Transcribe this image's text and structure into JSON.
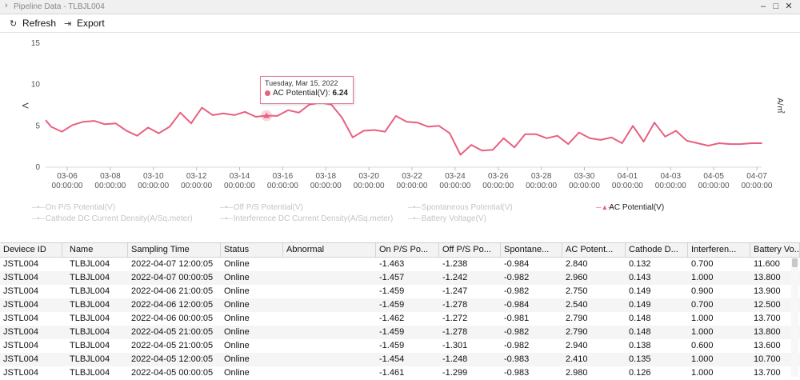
{
  "window": {
    "title": "Pipeline Data - TLBJL004",
    "title_icon": "chevron-right-icon",
    "minimize": "–",
    "maximize": "□",
    "close": "✕"
  },
  "toolbar": {
    "refresh_label": "Refresh",
    "refresh_icon": "refresh-icon",
    "export_label": "Export",
    "export_icon": "export-icon"
  },
  "chart_data": {
    "type": "line",
    "title": "",
    "ylabel": "V",
    "y2label": "A/㎡",
    "ylim": [
      0,
      15
    ],
    "yticks": [
      "0",
      "5",
      "10",
      "15"
    ],
    "xlim": [
      "2022-03-05",
      "2022-04-07"
    ],
    "xticks": [
      {
        "date": "2022-03-06",
        "line1": "03-06",
        "line2": "00:00:00"
      },
      {
        "date": "2022-03-08",
        "line1": "03-08",
        "line2": "00:00:00"
      },
      {
        "date": "2022-03-10",
        "line1": "03-10",
        "line2": "00:00:00"
      },
      {
        "date": "2022-03-12",
        "line1": "03-12",
        "line2": "00:00:00"
      },
      {
        "date": "2022-03-14",
        "line1": "03-14",
        "line2": "00:00:00"
      },
      {
        "date": "2022-03-16",
        "line1": "03-16",
        "line2": "00:00:00"
      },
      {
        "date": "2022-03-18",
        "line1": "03-18",
        "line2": "00:00:00"
      },
      {
        "date": "2022-03-20",
        "line1": "03-20",
        "line2": "00:00:00"
      },
      {
        "date": "2022-03-22",
        "line1": "03-22",
        "line2": "00:00:00"
      },
      {
        "date": "2022-03-24",
        "line1": "03-24",
        "line2": "00:00:00"
      },
      {
        "date": "2022-03-26",
        "line1": "03-26",
        "line2": "00:00:00"
      },
      {
        "date": "2022-03-28",
        "line1": "03-28",
        "line2": "00:00:00"
      },
      {
        "date": "2022-03-30",
        "line1": "03-30",
        "line2": "00:00:00"
      },
      {
        "date": "2022-04-01",
        "line1": "04-01",
        "line2": "00:00:00"
      },
      {
        "date": "2022-04-03",
        "line1": "04-03",
        "line2": "00:00:00"
      },
      {
        "date": "2022-04-05",
        "line1": "04-05",
        "line2": "00:00:00"
      },
      {
        "date": "2022-04-07",
        "line1": "04-07",
        "line2": "00:00:00"
      }
    ],
    "grid": false,
    "legend_position": "bottom",
    "line_color": "#e8607f",
    "series": [
      {
        "name": "AC Potential(V)",
        "x": [
          "2022-03-05 00:00",
          "2022-03-05 06:00",
          "2022-03-05 18:00",
          "2022-03-06 06:00",
          "2022-03-06 18:00",
          "2022-03-07 06:00",
          "2022-03-07 18:00",
          "2022-03-08 06:00",
          "2022-03-08 18:00",
          "2022-03-09 06:00",
          "2022-03-09 18:00",
          "2022-03-10 06:00",
          "2022-03-10 18:00",
          "2022-03-11 06:00",
          "2022-03-11 18:00",
          "2022-03-12 06:00",
          "2022-03-12 18:00",
          "2022-03-13 06:00",
          "2022-03-13 18:00",
          "2022-03-14 06:00",
          "2022-03-14 18:00",
          "2022-03-15 06:00",
          "2022-03-15 18:00",
          "2022-03-16 06:00",
          "2022-03-16 18:00",
          "2022-03-17 06:00",
          "2022-03-17 18:00",
          "2022-03-18 06:00",
          "2022-03-18 18:00",
          "2022-03-19 06:00",
          "2022-03-19 18:00",
          "2022-03-20 06:00",
          "2022-03-20 18:00",
          "2022-03-21 06:00",
          "2022-03-21 18:00",
          "2022-03-22 06:00",
          "2022-03-22 18:00",
          "2022-03-23 06:00",
          "2022-03-23 18:00",
          "2022-03-24 06:00",
          "2022-03-24 18:00",
          "2022-03-25 06:00",
          "2022-03-25 18:00",
          "2022-03-26 06:00",
          "2022-03-26 18:00",
          "2022-03-27 06:00",
          "2022-03-27 18:00",
          "2022-03-28 06:00",
          "2022-03-28 18:00",
          "2022-03-29 06:00",
          "2022-03-29 18:00",
          "2022-03-30 06:00",
          "2022-03-30 18:00",
          "2022-03-31 06:00",
          "2022-03-31 18:00",
          "2022-04-01 06:00",
          "2022-04-01 18:00",
          "2022-04-02 06:00",
          "2022-04-02 18:00",
          "2022-04-03 06:00",
          "2022-04-03 18:00",
          "2022-04-04 06:00",
          "2022-04-04 18:00",
          "2022-04-05 06:00",
          "2022-04-05 18:00",
          "2022-04-06 06:00",
          "2022-04-06 18:00",
          "2022-04-07 06:00"
        ],
        "values": [
          5.7,
          4.9,
          4.3,
          5.1,
          5.5,
          5.6,
          5.2,
          5.3,
          4.4,
          3.8,
          4.8,
          4.1,
          4.9,
          6.6,
          5.3,
          7.2,
          6.3,
          6.5,
          6.3,
          6.7,
          6.1,
          6.24,
          6.2,
          6.9,
          6.6,
          7.6,
          7.8,
          7.6,
          6.0,
          3.6,
          4.4,
          4.5,
          4.3,
          6.2,
          5.5,
          5.4,
          4.9,
          5.0,
          4.1,
          1.5,
          2.7,
          2.0,
          2.1,
          3.5,
          2.4,
          4.0,
          4.0,
          3.5,
          3.8,
          2.8,
          4.2,
          3.5,
          3.3,
          3.6,
          2.9,
          5.0,
          3.1,
          5.4,
          3.7,
          4.4,
          3.2,
          2.9,
          2.6,
          2.9,
          2.8,
          2.8,
          2.9,
          2.9
        ]
      }
    ],
    "tooltip": {
      "date": "Tuesday, Mar 15, 2022",
      "series": "AC Potential(V)",
      "value": "6.24",
      "anchor_x": "2022-03-15 06:00",
      "anchor_y": 6.24
    }
  },
  "legend": [
    {
      "label": "On P/S Potential(V)",
      "active": false
    },
    {
      "label": "Off P/S Potential(V)",
      "active": false
    },
    {
      "label": "Spontaneous Potential(V)",
      "active": false
    },
    {
      "label": "AC Potential(V)",
      "active": true
    },
    {
      "label": "Cathode DC Current Density(A/Sq.meter)",
      "active": false
    },
    {
      "label": "Interference DC Current Density(A/Sq.meter)",
      "active": false
    },
    {
      "label": "Battery Voltage(V)",
      "active": false
    }
  ],
  "table": {
    "columns": [
      "Deviece ID",
      "Name",
      "Sampling Time",
      "Status",
      "Abnormal",
      "On P/S Po...",
      "Off P/S Po...",
      "Spontane...",
      "AC Potent...",
      "Cathode D...",
      "Interferen...",
      "Battery Vo..."
    ],
    "rows": [
      [
        "JSTL004",
        "TLBJL004",
        "2022-04-07 12:00:05",
        "Online",
        "",
        "-1.463",
        "-1.238",
        "-0.984",
        "2.840",
        "0.132",
        "0.700",
        "11.600"
      ],
      [
        "JSTL004",
        "TLBJL004",
        "2022-04-07 00:00:05",
        "Online",
        "",
        "-1.457",
        "-1.242",
        "-0.982",
        "2.960",
        "0.143",
        "1.000",
        "13.800"
      ],
      [
        "JSTL004",
        "TLBJL004",
        "2022-04-06 21:00:05",
        "Online",
        "",
        "-1.459",
        "-1.247",
        "-0.982",
        "2.750",
        "0.149",
        "0.900",
        "13.900"
      ],
      [
        "JSTL004",
        "TLBJL004",
        "2022-04-06 12:00:05",
        "Online",
        "",
        "-1.459",
        "-1.278",
        "-0.984",
        "2.540",
        "0.149",
        "0.700",
        "12.500"
      ],
      [
        "JSTL004",
        "TLBJL004",
        "2022-04-06 00:00:05",
        "Online",
        "",
        "-1.462",
        "-1.272",
        "-0.981",
        "2.790",
        "0.148",
        "1.000",
        "13.700"
      ],
      [
        "JSTL004",
        "TLBJL004",
        "2022-04-05 21:00:05",
        "Online",
        "",
        "-1.459",
        "-1.278",
        "-0.982",
        "2.790",
        "0.148",
        "1.000",
        "13.800"
      ],
      [
        "JSTL004",
        "TLBJL004",
        "2022-04-05 21:00:05",
        "Online",
        "",
        "-1.459",
        "-1.301",
        "-0.982",
        "2.940",
        "0.138",
        "0.600",
        "13.600"
      ],
      [
        "JSTL004",
        "TLBJL004",
        "2022-04-05 12:00:05",
        "Online",
        "",
        "-1.454",
        "-1.248",
        "-0.983",
        "2.410",
        "0.135",
        "1.000",
        "10.700"
      ],
      [
        "JSTL004",
        "TLBJL004",
        "2022-04-05 00:00:05",
        "Online",
        "",
        "-1.461",
        "-1.299",
        "-0.983",
        "2.980",
        "0.126",
        "1.000",
        "13.700"
      ]
    ]
  }
}
